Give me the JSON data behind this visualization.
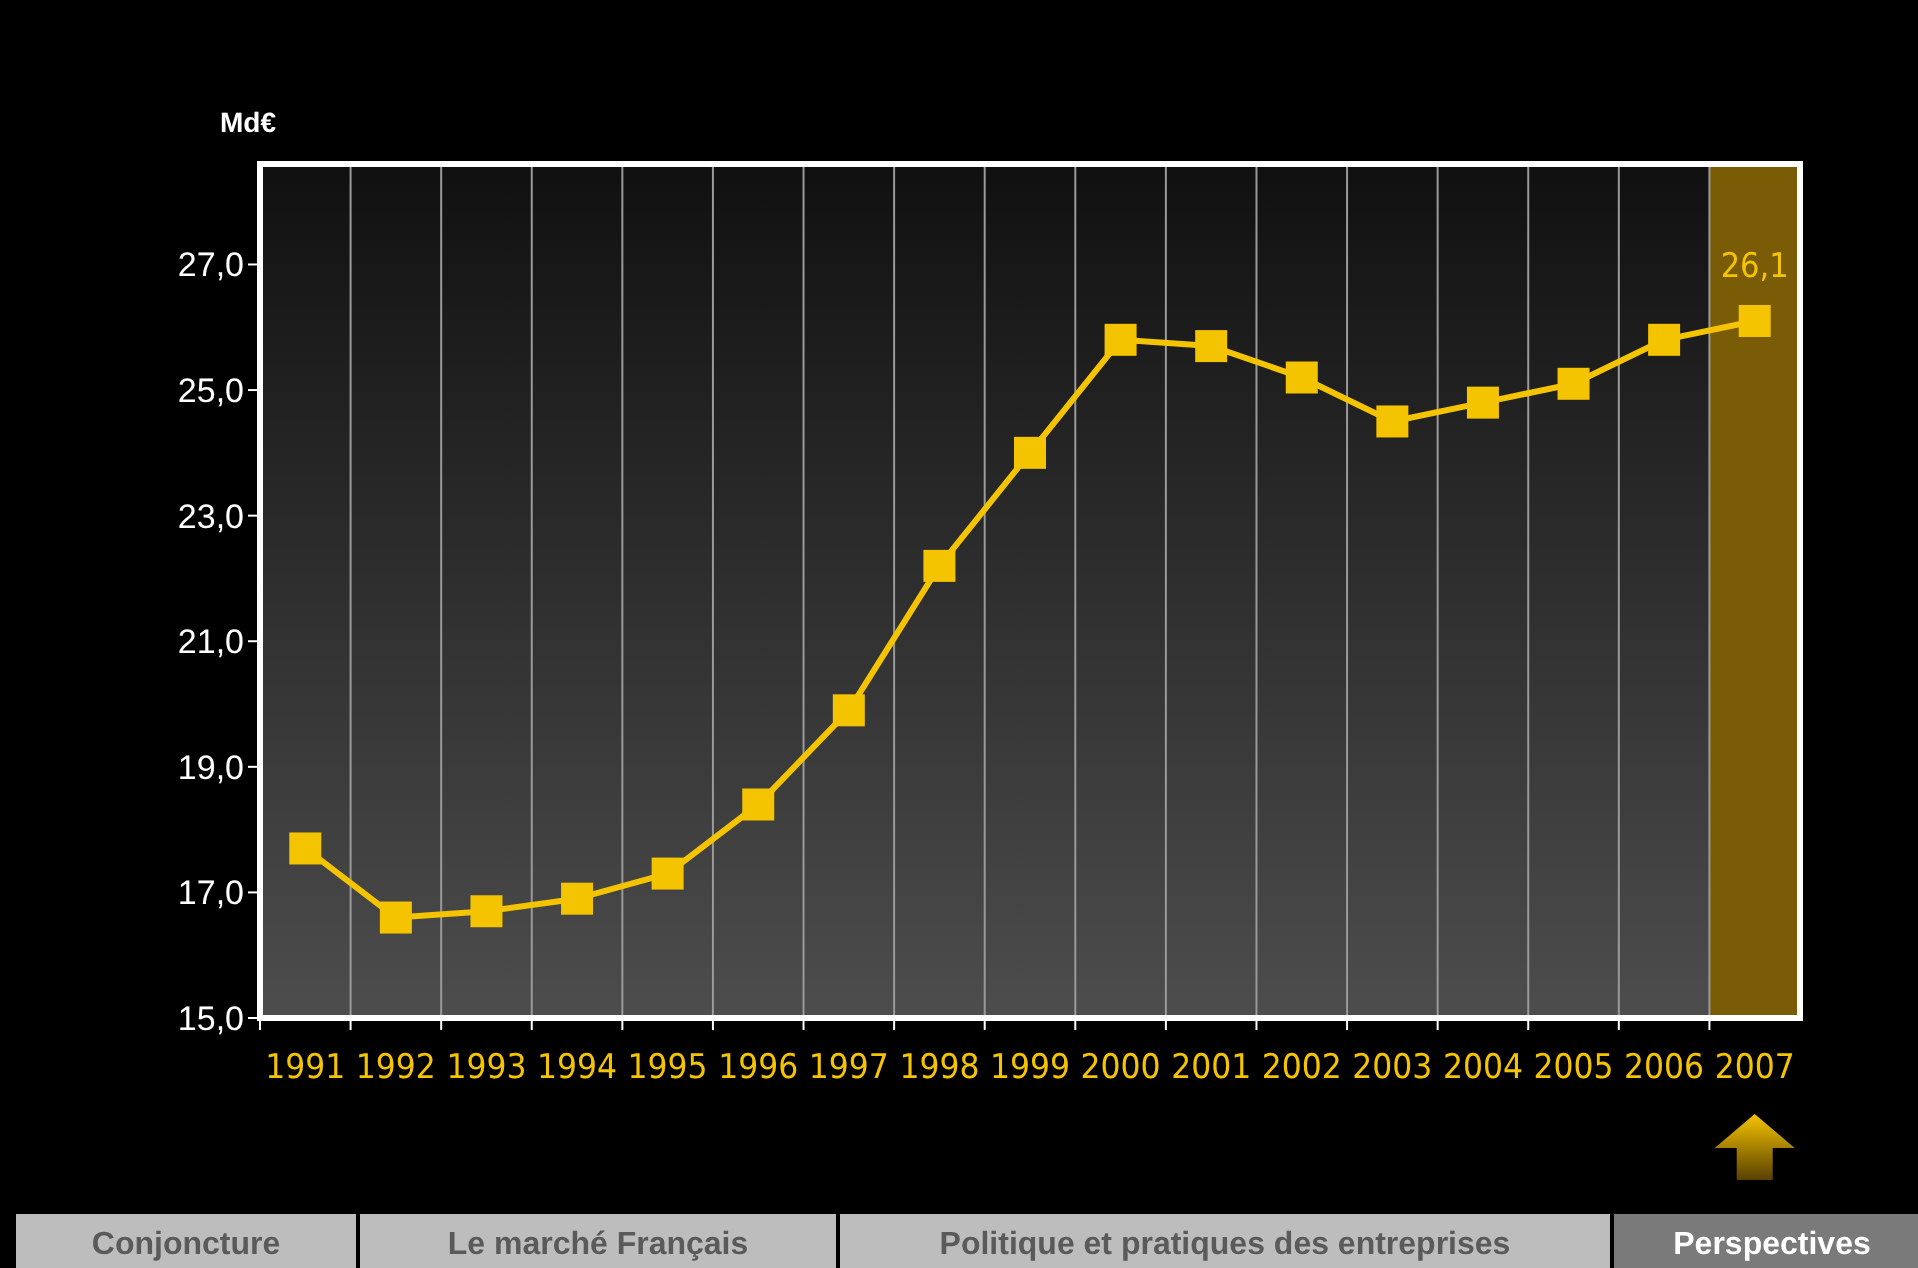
{
  "chart_data": {
    "type": "line",
    "ylabel": "Md€",
    "categories": [
      "1991",
      "1992",
      "1993",
      "1994",
      "1995",
      "1996",
      "1997",
      "1998",
      "1999",
      "2000",
      "2001",
      "2002",
      "2003",
      "2004",
      "2005",
      "2006",
      "2007"
    ],
    "series": [
      {
        "color": "#f5c400",
        "values": [
          17.7,
          16.6,
          16.7,
          16.9,
          17.3,
          18.4,
          19.9,
          22.2,
          24.0,
          25.8,
          25.7,
          25.2,
          24.5,
          24.8,
          25.1,
          25.8,
          26.1
        ],
        "value_labels": [
          null,
          null,
          null,
          null,
          null,
          null,
          null,
          null,
          null,
          null,
          null,
          null,
          null,
          null,
          null,
          null,
          "26,1"
        ]
      }
    ],
    "ylim": [
      15,
      28.6
    ],
    "yticks": [
      {
        "value": 15,
        "label": "15,0"
      },
      {
        "value": 17,
        "label": "17,0"
      },
      {
        "value": 19,
        "label": "19,0"
      },
      {
        "value": 21,
        "label": "21,0"
      },
      {
        "value": 23,
        "label": "23,0"
      },
      {
        "value": 25,
        "label": "25,0"
      },
      {
        "value": 27,
        "label": "27,0"
      }
    ],
    "bands": [
      {
        "axis": "x",
        "from": "2007",
        "to": "2007",
        "color": "#7a5c06"
      }
    ],
    "grid": "x",
    "marker": "square",
    "line_style": "solid",
    "annotations": [
      "Conjoncture",
      "Le marché Français",
      "Politique et pratiques des entreprises",
      "Perspectives"
    ]
  }
}
